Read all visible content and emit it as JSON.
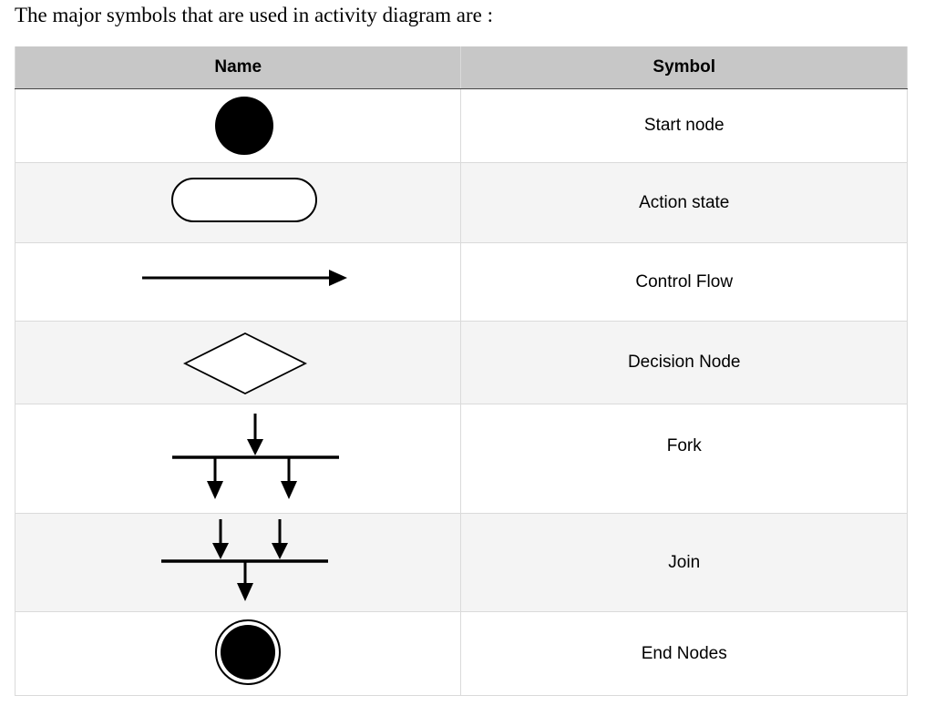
{
  "intro_text": "The major symbols that are used in activity diagram are :",
  "table": {
    "headers": {
      "name": "Name",
      "symbol": "Symbol"
    },
    "rows": [
      {
        "icon": "start-node-icon",
        "label": "Start node"
      },
      {
        "icon": "action-state-icon",
        "label": "Action state"
      },
      {
        "icon": "control-flow-icon",
        "label": "Control Flow"
      },
      {
        "icon": "decision-node-icon",
        "label": "Decision Node"
      },
      {
        "icon": "fork-icon",
        "label": "Fork"
      },
      {
        "icon": "join-icon",
        "label": "Join"
      },
      {
        "icon": "end-node-icon",
        "label": "End Nodes"
      }
    ]
  },
  "colors": {
    "header_bg": "#c7c7c7",
    "alt_row_bg": "#f4f4f4",
    "border": "#dadada",
    "ink": "#000000"
  }
}
